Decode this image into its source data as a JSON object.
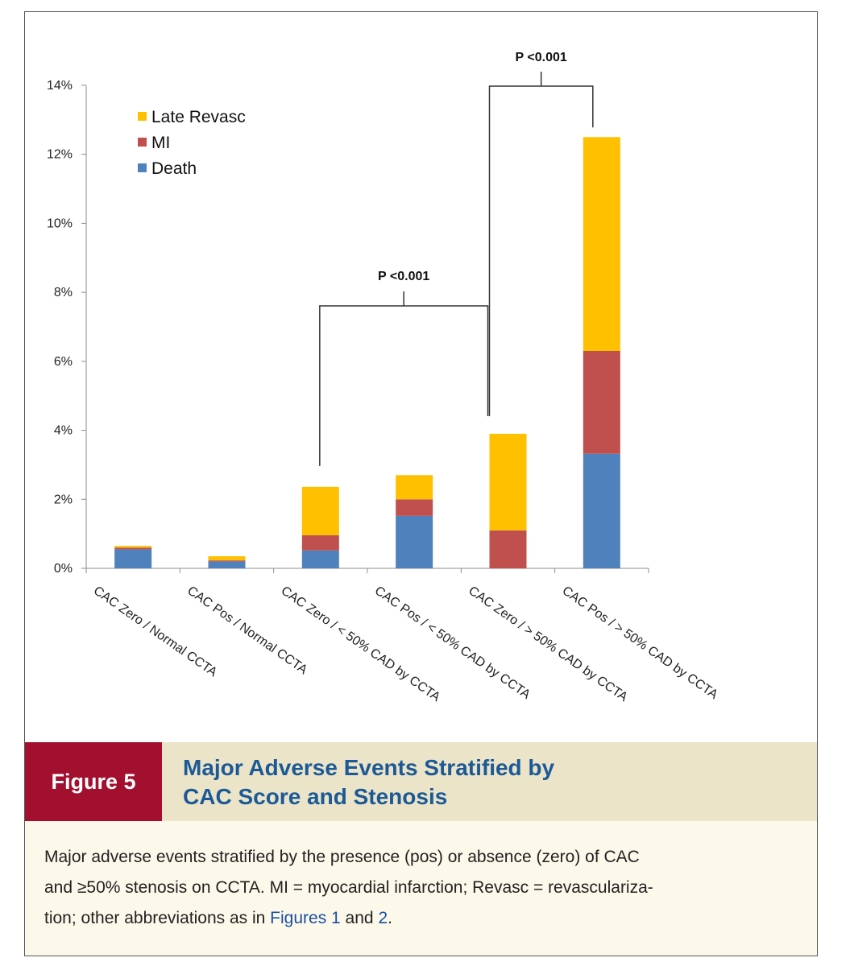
{
  "chart_data": {
    "type": "bar",
    "stacked": true,
    "categories": [
      "CAC Zero / Normal CCTA",
      "CAC Pos / Normal CCTA",
      "CAC Zero / < 50% CAD by CCTA",
      "CAC Pos / < 50% CAD by CCTA",
      "CAC Zero / > 50% CAD by CCTA",
      "CAC Pos / > 50% CAD by CCTA"
    ],
    "series": [
      {
        "name": "Death",
        "color": "#4f81bd",
        "values": [
          0.55,
          0.2,
          0.52,
          1.52,
          0.0,
          3.32
        ]
      },
      {
        "name": "MI",
        "color": "#c0504d",
        "values": [
          0.05,
          0.03,
          0.44,
          0.48,
          1.1,
          2.98
        ]
      },
      {
        "name": "Late Revasc",
        "color": "#ffc000",
        "values": [
          0.05,
          0.12,
          1.4,
          0.7,
          2.8,
          6.2
        ]
      }
    ],
    "y_ticks": [
      "0%",
      "2%",
      "4%",
      "6%",
      "8%",
      "10%",
      "12%",
      "14%"
    ],
    "ylim": [
      0,
      14
    ],
    "legend_order": [
      "Late Revasc",
      "MI",
      "Death"
    ],
    "legend_position": "top-left",
    "annotations": [
      {
        "text": "P <0.001",
        "from_category": 2,
        "to_category": 4
      },
      {
        "text": "P <0.001",
        "from_category": 4,
        "to_category": 5
      }
    ]
  },
  "figure": {
    "label": "Figure 5",
    "title_line1": "Major Adverse Events Stratified by",
    "title_line2": "CAC Score and Stenosis"
  },
  "caption": {
    "line1": "Major adverse events stratified by the presence (pos) or absence (zero) of CAC",
    "line2": "and ≥50% stenosis on CCTA. MI = myocardial infarction; Revasc = revasculariza-",
    "line3_pre": "tion; other abbreviations as in ",
    "link1": "Figures 1",
    "line3_mid": " and ",
    "link2": "2",
    "line3_post": "."
  },
  "colors": {
    "figure_tag_bg": "#a3102f",
    "title_text": "#1b5a96",
    "title_bar_bg": "#ece4c9",
    "caption_bg": "#fcf9ea"
  }
}
